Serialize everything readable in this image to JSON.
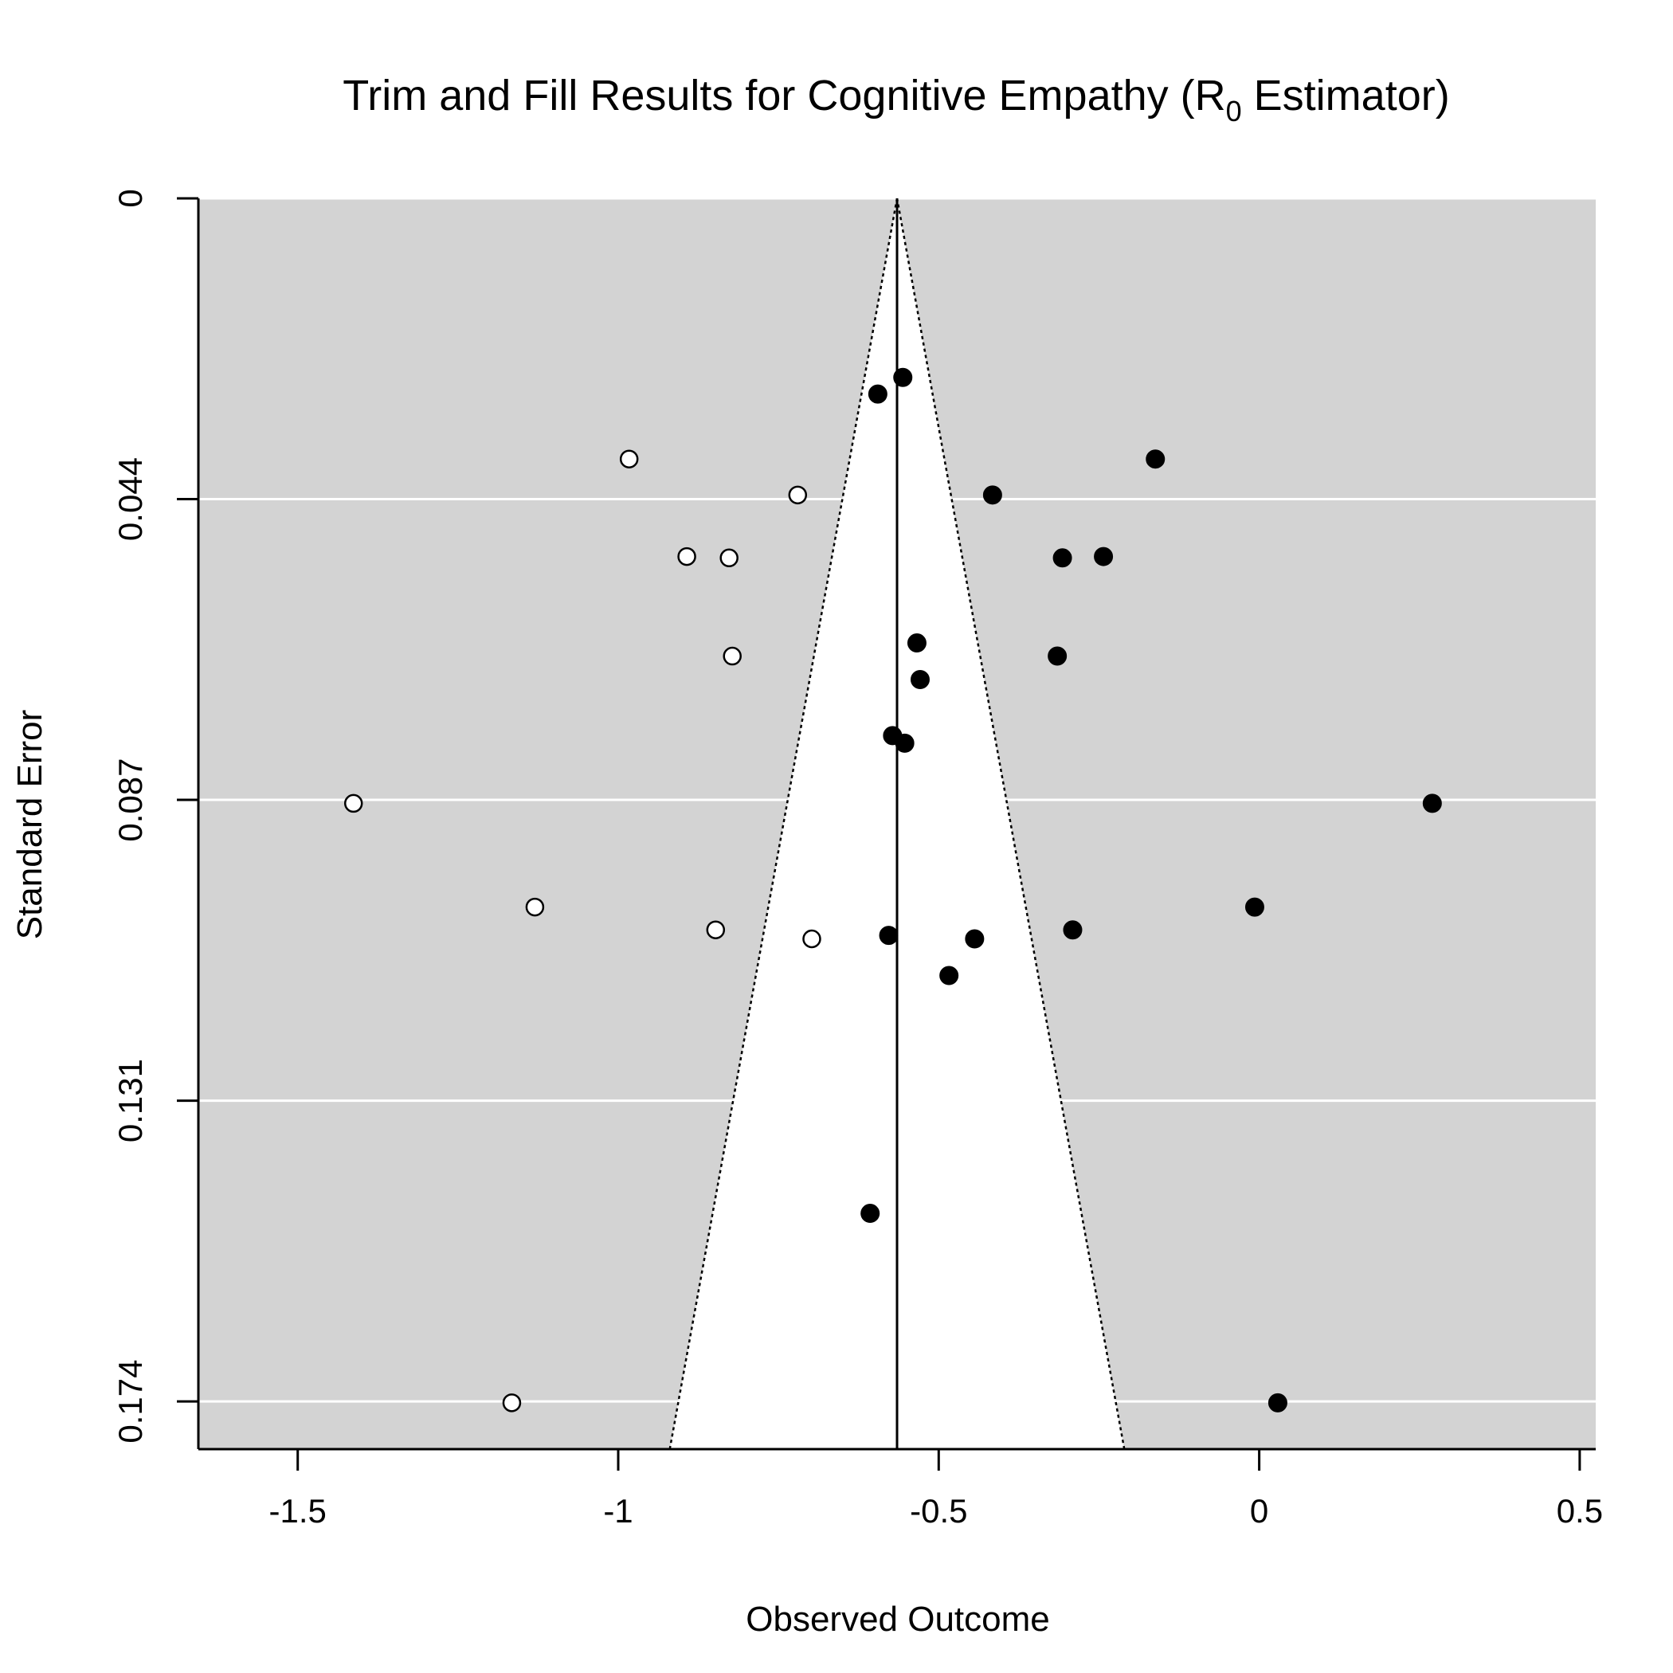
{
  "chart_data": {
    "type": "scatter",
    "title": {
      "prefix": "Trim and Fill Results for Cognitive Empathy (R",
      "subscript": "0",
      "suffix": " Estimator)"
    },
    "xlabel": "Observed Outcome",
    "ylabel": "Standard Error",
    "xlim": [
      -1.655,
      0.525
    ],
    "ylim": [
      0.1809,
      0
    ],
    "x_ticks": [
      {
        "value": -1.5,
        "label": "-1.5"
      },
      {
        "value": -1.0,
        "label": "-1"
      },
      {
        "value": -0.5,
        "label": "-0.5"
      },
      {
        "value": 0.0,
        "label": "0"
      },
      {
        "value": 0.5,
        "label": "0.5"
      }
    ],
    "y_ticks": [
      {
        "value": 0,
        "label": "0"
      },
      {
        "value": 0.0435,
        "label": "0.044"
      },
      {
        "value": 0.087,
        "label": "0.087"
      },
      {
        "value": 0.1305,
        "label": "0.131"
      },
      {
        "value": 0.174,
        "label": "0.174"
      }
    ],
    "grid": true,
    "background": "#d3d3d3",
    "funnel": {
      "center": -0.565,
      "z": 1.96,
      "se_max": 0.1809
    },
    "series": [
      {
        "style": "filled",
        "points": [
          {
            "x": -0.556,
            "y": 0.0259
          },
          {
            "x": -0.595,
            "y": 0.0283
          },
          {
            "x": -0.162,
            "y": 0.0377
          },
          {
            "x": -0.416,
            "y": 0.0429
          },
          {
            "x": -0.307,
            "y": 0.052
          },
          {
            "x": -0.243,
            "y": 0.0518
          },
          {
            "x": -0.534,
            "y": 0.0643
          },
          {
            "x": -0.315,
            "y": 0.0662
          },
          {
            "x": -0.529,
            "y": 0.0696
          },
          {
            "x": -0.572,
            "y": 0.0777
          },
          {
            "x": -0.553,
            "y": 0.0788
          },
          {
            "x": 0.27,
            "y": 0.0875
          },
          {
            "x": -0.007,
            "y": 0.1025
          },
          {
            "x": -0.291,
            "y": 0.1058
          },
          {
            "x": -0.578,
            "y": 0.1066
          },
          {
            "x": -0.444,
            "y": 0.1071
          },
          {
            "x": -0.484,
            "y": 0.1124
          },
          {
            "x": -0.607,
            "y": 0.1468
          },
          {
            "x": 0.029,
            "y": 0.1742
          }
        ]
      },
      {
        "style": "open",
        "points": [
          {
            "x": -0.983,
            "y": 0.0377
          },
          {
            "x": -0.72,
            "y": 0.0429
          },
          {
            "x": -0.893,
            "y": 0.0518
          },
          {
            "x": -0.827,
            "y": 0.052
          },
          {
            "x": -0.822,
            "y": 0.0662
          },
          {
            "x": -1.413,
            "y": 0.0875
          },
          {
            "x": -1.13,
            "y": 0.1025
          },
          {
            "x": -0.848,
            "y": 0.1058
          },
          {
            "x": -0.698,
            "y": 0.1071
          },
          {
            "x": -1.166,
            "y": 0.1742
          }
        ]
      }
    ]
  }
}
